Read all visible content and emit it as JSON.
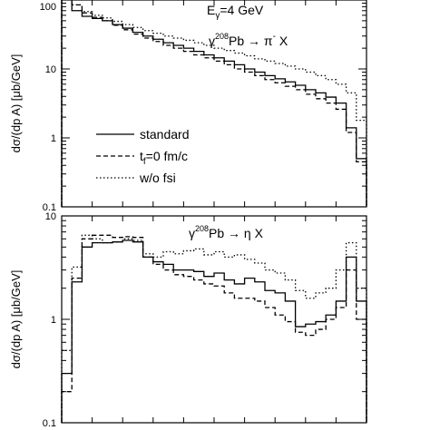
{
  "chart_data": [
    {
      "type": "line",
      "step": true,
      "log_y": true,
      "ylim": [
        0.1,
        100
      ],
      "xlim": [
        0,
        30
      ],
      "yticks": [
        0.1,
        1,
        10,
        100
      ],
      "ytick_labels": [
        "0.1",
        "1",
        "10",
        "100"
      ],
      "ylabel": "dσ/(dp A) [μb/GeV]",
      "annotations": [
        "Eγ=4 GeV",
        "γ 208Pb → π- X"
      ],
      "energy_label": {
        "base": "E",
        "sub": "γ",
        "rest": "=4 GeV"
      },
      "reaction_label": {
        "gamma": "γ",
        "sup": "208",
        "nucleus": "Pb → π",
        "charge": "-",
        "tail": " X"
      },
      "legend_position": "center-left",
      "x": [
        0,
        1,
        2,
        3,
        4,
        5,
        6,
        7,
        8,
        9,
        10,
        11,
        12,
        13,
        14,
        15,
        16,
        17,
        18,
        19,
        20,
        21,
        22,
        23,
        24,
        25,
        26,
        27,
        28,
        29
      ],
      "series": [
        {
          "name": "standard",
          "dash": "solid",
          "values": [
            140,
            70,
            58,
            54,
            50,
            44,
            39,
            34,
            30,
            27,
            24,
            22,
            20,
            18,
            16,
            14.5,
            13,
            11.5,
            10,
            9,
            8,
            7.2,
            6.5,
            5.8,
            5,
            4.5,
            3.9,
            3.2,
            1.4,
            0.5
          ]
        },
        {
          "name": "t",
          "name_sub": "f",
          "name_rest": "=0 fm/c",
          "dash": "dashed",
          "values": [
            180,
            85,
            65,
            56,
            50,
            43,
            37,
            32,
            28,
            25,
            22,
            20,
            18,
            16,
            14.5,
            13,
            11.5,
            10,
            9,
            8,
            7,
            6.3,
            5.6,
            5,
            4.3,
            3.7,
            3.2,
            2.6,
            1.2,
            0.45
          ]
        },
        {
          "name": "w/o fsi",
          "dash": "dotted",
          "values": [
            160,
            85,
            68,
            60,
            55,
            49,
            44,
            40,
            36,
            33,
            30,
            28,
            26,
            24,
            22,
            20,
            18.5,
            17,
            15.5,
            14,
            13,
            12,
            11,
            10,
            9,
            8,
            7,
            6,
            4.5,
            1.8
          ]
        }
      ]
    },
    {
      "type": "line",
      "step": true,
      "log_y": true,
      "ylim": [
        0.1,
        10
      ],
      "xlim": [
        0,
        30
      ],
      "yticks": [
        0.1,
        1,
        10
      ],
      "ytick_labels": [
        "0.1",
        "1",
        "10"
      ],
      "ylabel": "dσ/(dp A) [μb/GeV]",
      "annotations": [
        "γ 208Pb → η X"
      ],
      "reaction_label": {
        "gamma": "γ",
        "sup": "208",
        "nucleus": "Pb → η X"
      },
      "x": [
        0,
        1,
        2,
        3,
        4,
        5,
        6,
        7,
        8,
        9,
        10,
        11,
        12,
        13,
        14,
        15,
        16,
        17,
        18,
        19,
        20,
        21,
        22,
        23,
        24,
        25,
        26,
        27,
        28,
        29
      ],
      "series": [
        {
          "name": "standard",
          "dash": "solid",
          "values": [
            0.3,
            2.3,
            5.0,
            5.5,
            5.5,
            5.6,
            5.8,
            5.6,
            4.0,
            3.6,
            3.4,
            3.0,
            3.0,
            2.9,
            2.6,
            2.8,
            2.4,
            2.2,
            2.5,
            2.3,
            1.9,
            1.8,
            1.5,
            0.85,
            0.9,
            0.95,
            1.1,
            1.5,
            4.0,
            1.5
          ]
        },
        {
          "name": "tf=0 fm/c",
          "dash": "dashed",
          "values": [
            0.2,
            2.5,
            6.0,
            6.5,
            6.5,
            6.2,
            6.3,
            6.2,
            4.0,
            3.4,
            3.0,
            2.7,
            2.6,
            2.4,
            2.2,
            2.1,
            1.8,
            1.6,
            1.6,
            1.5,
            1.3,
            1.1,
            0.95,
            0.75,
            0.7,
            0.8,
            1.0,
            1.3,
            3.0,
            1.0
          ]
        },
        {
          "name": "w/o fsi",
          "dash": "dotted",
          "values": [
            0.5,
            3.2,
            6.5,
            6.0,
            5.5,
            5.6,
            6.0,
            5.8,
            4.3,
            4.0,
            4.5,
            4.3,
            4.6,
            4.8,
            4.2,
            4.5,
            4.0,
            4.2,
            3.8,
            3.5,
            3.0,
            2.8,
            2.4,
            1.9,
            1.6,
            1.8,
            2.0,
            3.0,
            5.5,
            2.0
          ]
        }
      ]
    }
  ]
}
